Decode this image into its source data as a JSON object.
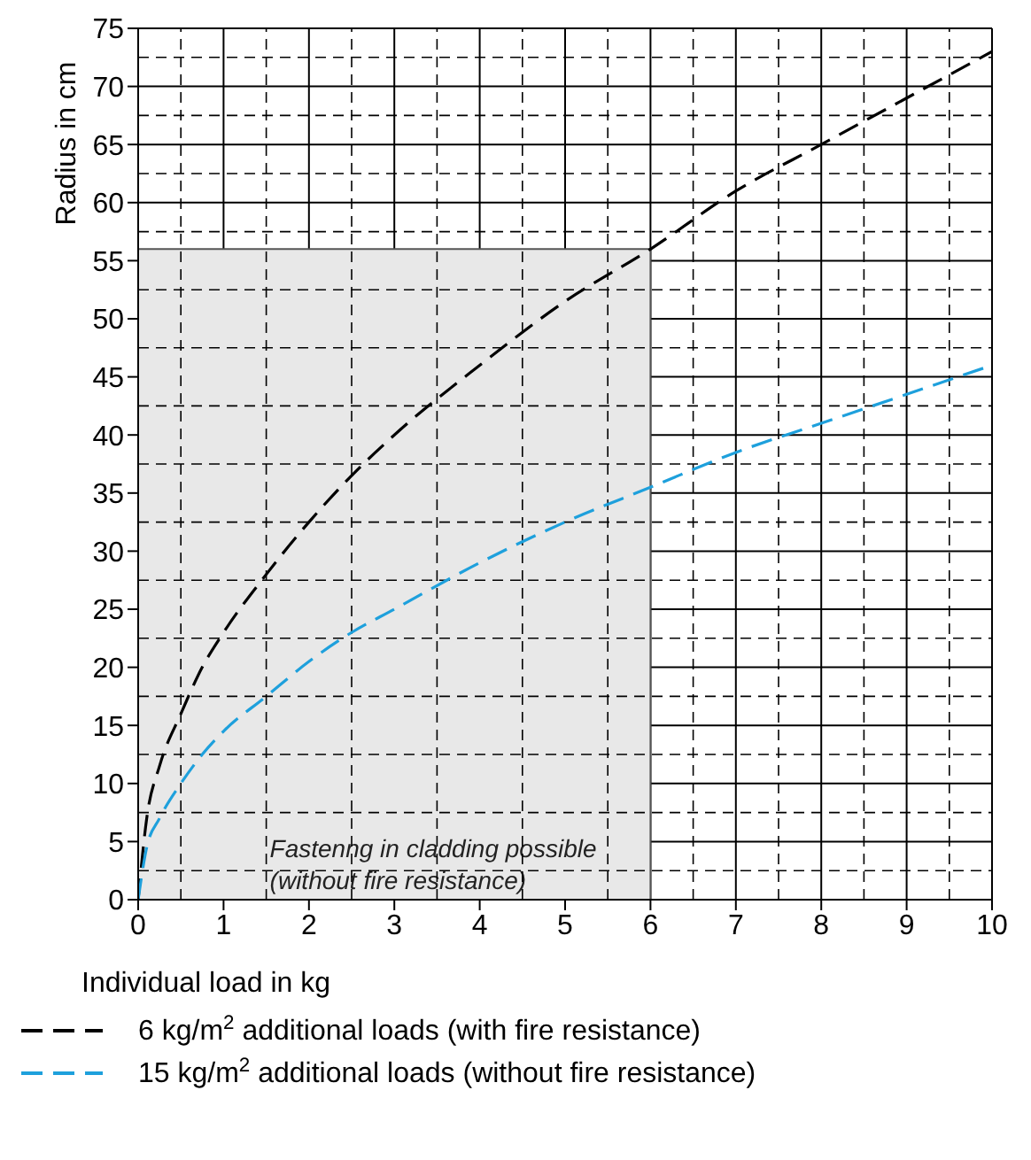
{
  "chart_data": {
    "type": "line",
    "xlabel": "Individual load in kg",
    "ylabel": "Radius in cm",
    "x": [
      0,
      0.1,
      0.25,
      0.5,
      0.75,
      1,
      1.5,
      2,
      2.5,
      3,
      4,
      5,
      6,
      7,
      8,
      9,
      10
    ],
    "series": [
      {
        "name": "6 kg/m$^{2}$ additional loads (with fire resistance)",
        "color": "#000000",
        "line_style": "dashed",
        "values": [
          0,
          7,
          11.5,
          16,
          20,
          23,
          28,
          32.5,
          36.5,
          40,
          46,
          51.5,
          56,
          61,
          65,
          69,
          73
        ]
      },
      {
        "name": "15 kg/m$^{2}$ additional loads (without fire resistance)",
        "color": "#1ea0dc",
        "line_style": "dashed",
        "values": [
          0,
          4.5,
          7,
          10,
          12.5,
          14.5,
          17.5,
          20.5,
          23,
          25,
          29,
          32.5,
          35.5,
          38.5,
          41,
          43.5,
          46
        ]
      }
    ],
    "xlim": [
      0,
      10
    ],
    "ylim": [
      0,
      75
    ],
    "xticks": [
      0,
      1,
      2,
      3,
      4,
      5,
      6,
      7,
      8,
      9,
      10
    ],
    "yticks": [
      0,
      5,
      10,
      15,
      20,
      25,
      30,
      35,
      40,
      45,
      50,
      55,
      60,
      65,
      70,
      75
    ],
    "bands": [
      {
        "axis": "x",
        "from": 0,
        "to": 6,
        "label": "Fastenng in cladding possible (without fire resistance)",
        "color": "#e8e8e8"
      }
    ],
    "grid": true,
    "legend": "bottom",
    "marker": "none"
  }
}
